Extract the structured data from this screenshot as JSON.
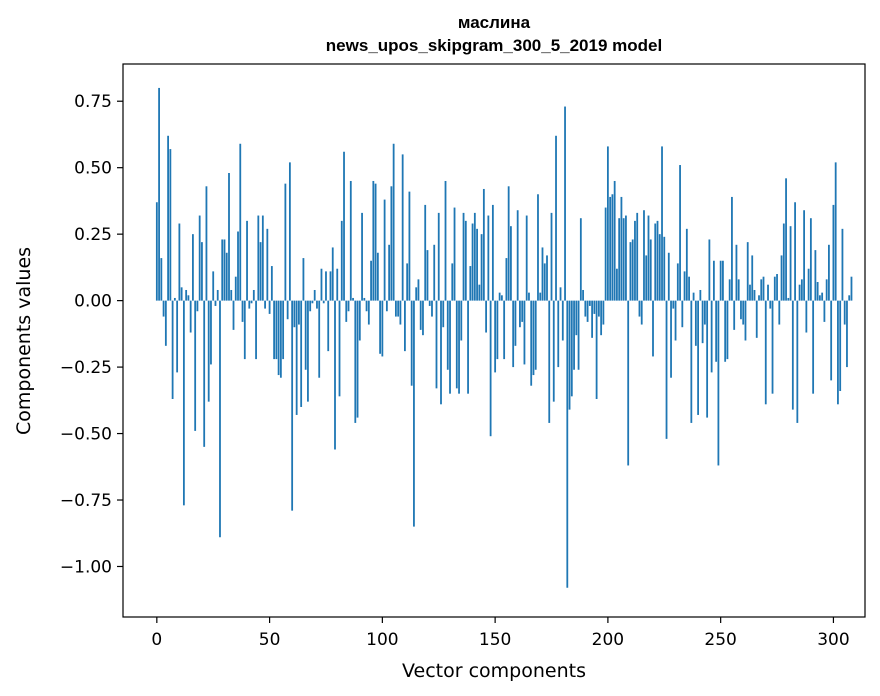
{
  "chart_data": {
    "type": "bar",
    "title": "маслина",
    "subtitle": "news_upos_skipgram_300_5_2019 model",
    "xlabel": "Vector components",
    "ylabel": "Components values",
    "xlim": [
      -15,
      314
    ],
    "ylim": [
      -1.19,
      0.89
    ],
    "xticks": [
      0,
      50,
      100,
      150,
      200,
      250,
      300
    ],
    "xtick_labels": [
      "0",
      "50",
      "100",
      "150",
      "200",
      "250",
      "300"
    ],
    "yticks": [
      0.75,
      0.5,
      0.25,
      0.0,
      -0.25,
      -0.5,
      -0.75,
      -1.0
    ],
    "ytick_labels": [
      "0.75",
      "0.50",
      "0.25",
      "0.00",
      "−0.25",
      "−0.50",
      "−0.75",
      "−1.00"
    ],
    "bar_color": "#1f77b4",
    "grid": false,
    "values": [
      0.37,
      0.8,
      0.16,
      -0.06,
      -0.17,
      0.62,
      0.57,
      -0.37,
      0.01,
      -0.27,
      0.29,
      0.05,
      -0.77,
      0.04,
      0.02,
      -0.12,
      0.25,
      -0.49,
      -0.04,
      0.32,
      0.22,
      -0.55,
      0.43,
      -0.38,
      -0.24,
      0.11,
      -0.02,
      0.04,
      -0.89,
      0.23,
      0.23,
      0.18,
      0.48,
      0.04,
      -0.11,
      0.09,
      0.26,
      0.59,
      -0.08,
      -0.22,
      0.3,
      -0.03,
      -0.01,
      0.04,
      -0.22,
      0.32,
      0.22,
      0.32,
      -0.03,
      0.27,
      -0.05,
      0.13,
      -0.22,
      -0.22,
      -0.28,
      -0.29,
      -0.22,
      0.44,
      -0.07,
      0.52,
      -0.79,
      -0.1,
      -0.43,
      -0.09,
      -0.4,
      0.16,
      -0.26,
      -0.38,
      -0.04,
      -0.01,
      0.04,
      -0.03,
      -0.29,
      0.12,
      -0.01,
      0.11,
      -0.19,
      0.11,
      0.2,
      -0.56,
      0.12,
      -0.36,
      0.3,
      0.56,
      -0.08,
      -0.04,
      0.45,
      0.01,
      -0.46,
      -0.44,
      -0.15,
      0.33,
      0.01,
      -0.04,
      -0.09,
      0.15,
      0.45,
      0.44,
      0.18,
      -0.2,
      -0.21,
      0.38,
      -0.04,
      0.21,
      0.43,
      0.59,
      -0.06,
      -0.06,
      -0.09,
      0.55,
      -0.19,
      0.14,
      0.41,
      -0.32,
      -0.85,
      0.05,
      0.08,
      -0.11,
      -0.13,
      0.36,
      0.19,
      -0.02,
      -0.06,
      0.21,
      -0.33,
      0.33,
      -0.39,
      -0.1,
      0.45,
      -0.26,
      -0.35,
      0.14,
      0.35,
      -0.33,
      -0.35,
      -0.15,
      0.33,
      0.3,
      -0.35,
      0.13,
      0.29,
      0.33,
      0.27,
      0.06,
      0.25,
      0.42,
      -0.12,
      0.32,
      -0.51,
      0.36,
      -0.27,
      -0.22,
      0.03,
      0.02,
      -0.22,
      0.16,
      0.43,
      0.28,
      -0.25,
      -0.17,
      0.34,
      -0.1,
      -0.08,
      -0.24,
      0.32,
      0.03,
      -0.32,
      -0.28,
      -0.26,
      0.4,
      0.03,
      0.2,
      0.14,
      0.17,
      -0.46,
      0.33,
      -0.38,
      0.62,
      -0.25,
      0.05,
      -0.15,
      0.73,
      -1.08,
      -0.41,
      -0.36,
      -0.26,
      -0.13,
      -0.26,
      0.31,
      0.04,
      -0.06,
      -0.08,
      -0.02,
      -0.14,
      -0.05,
      -0.37,
      -0.06,
      -0.13,
      -0.09,
      0.35,
      0.58,
      0.39,
      0.4,
      0.45,
      0.12,
      0.31,
      0.39,
      0.31,
      0.32,
      -0.62,
      0.22,
      0.23,
      0.3,
      0.33,
      -0.06,
      -0.09,
      0.34,
      0.17,
      0.32,
      0.23,
      -0.21,
      0.29,
      0.3,
      0.25,
      0.58,
      0.24,
      -0.52,
      0.18,
      -0.29,
      -0.03,
      -0.15,
      0.14,
      0.51,
      -0.1,
      0.11,
      0.27,
      0.09,
      -0.46,
      0.03,
      -0.17,
      -0.43,
      0.04,
      -0.16,
      -0.09,
      -0.44,
      0.23,
      -0.27,
      0.15,
      -0.23,
      -0.62,
      0.15,
      0.15,
      -0.23,
      -0.22,
      0.08,
      0.39,
      -0.11,
      0.21,
      0.08,
      -0.07,
      -0.09,
      -0.15,
      0.22,
      0.06,
      0.17,
      0.04,
      -0.14,
      0.02,
      0.08,
      0.09,
      -0.39,
      0.06,
      -0.03,
      -0.35,
      0.09,
      0.1,
      -0.09,
      0.17,
      0.29,
      0.46,
      0.01,
      0.28,
      -0.41,
      0.37,
      -0.46,
      0.06,
      0.08,
      0.34,
      -0.12,
      0.12,
      0.31,
      -0.35,
      0.19,
      0.07,
      0.02,
      0.03,
      -0.08,
      0.08,
      0.21,
      -0.3,
      0.36,
      0.52,
      -0.39,
      -0.34,
      0.27,
      -0.09,
      -0.25,
      0.02,
      0.09
    ]
  }
}
